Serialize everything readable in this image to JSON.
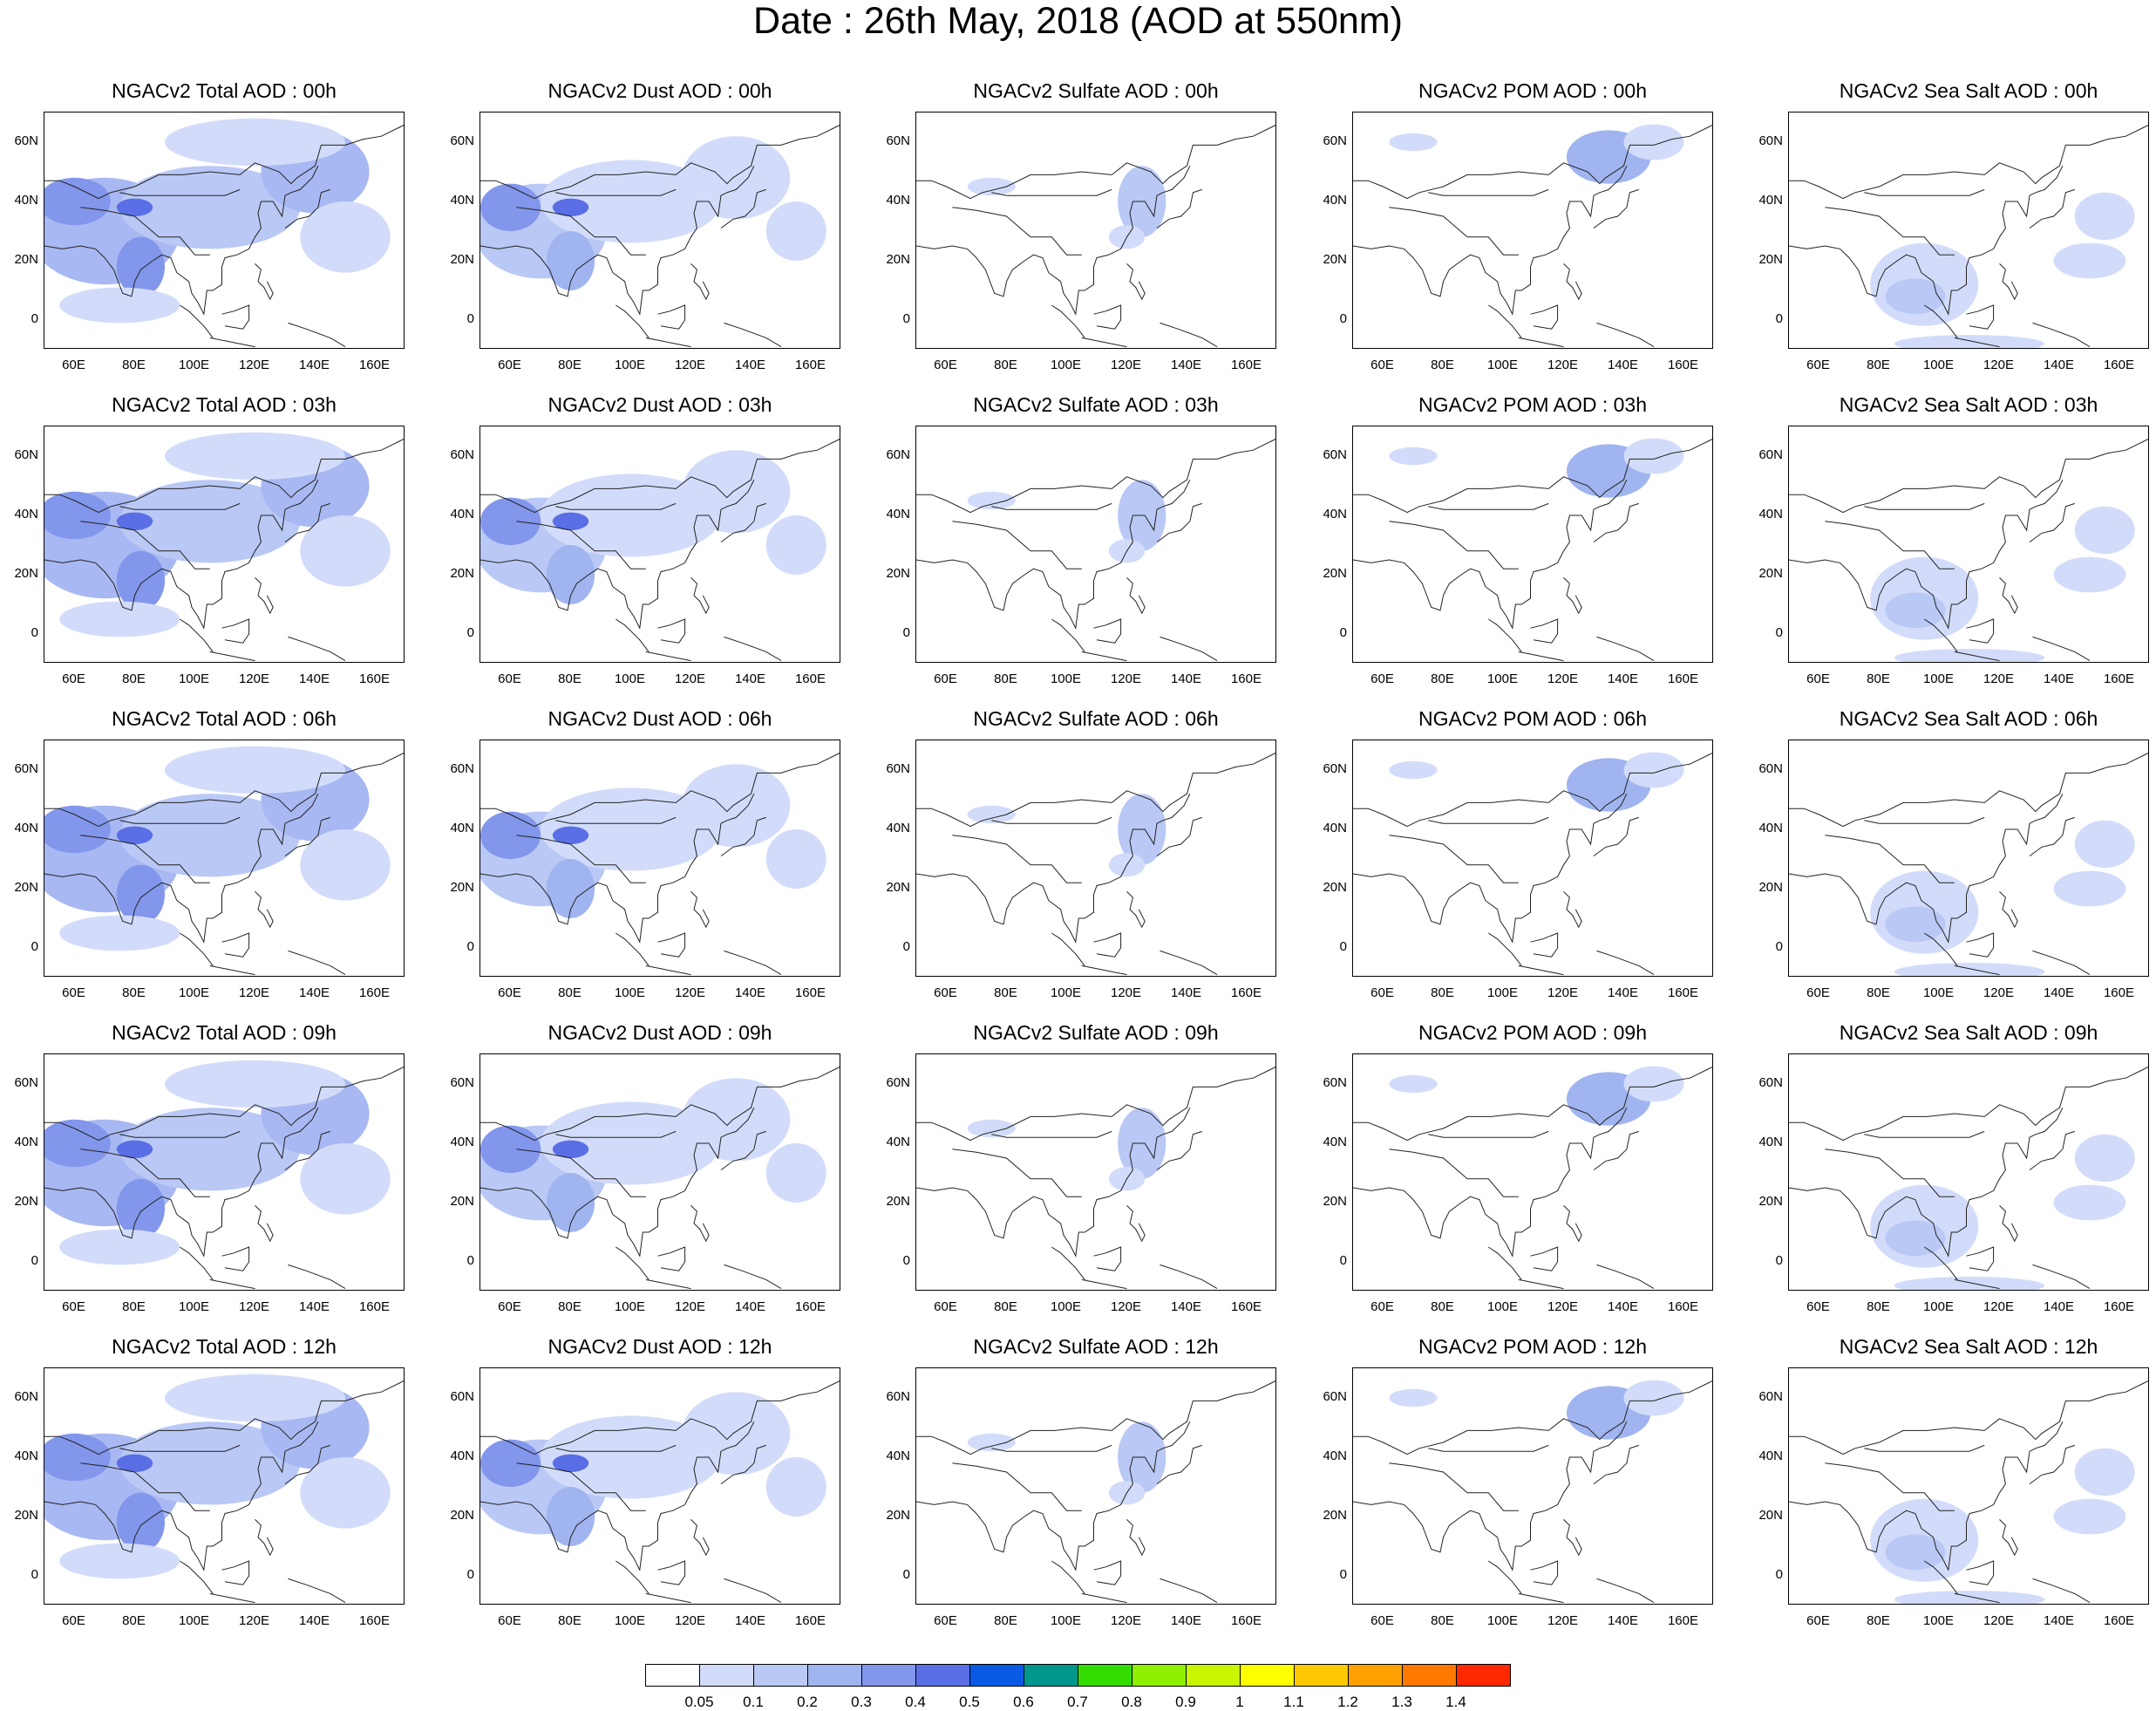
{
  "title": "Date : 26th May, 2018 (AOD at 550nm)",
  "lat_ticks": [
    "60N",
    "40N",
    "20N",
    "0"
  ],
  "lon_ticks": [
    "60E",
    "80E",
    "100E",
    "120E",
    "140E",
    "160E"
  ],
  "species": [
    {
      "key": "total",
      "fill": 0.55
    },
    {
      "key": "dust",
      "fill": 0.5
    },
    {
      "key": "sulfate",
      "fill": 0.06
    },
    {
      "key": "pom",
      "fill": 0.1
    },
    {
      "key": "seasalt",
      "fill": 0.18
    }
  ],
  "panels": [
    [
      "NGACv2 Total AOD : 00h",
      "NGACv2 Dust AOD : 00h",
      "NGACv2 Sulfate AOD : 00h",
      "NGACv2 POM AOD : 00h",
      "NGACv2 Sea Salt AOD : 00h"
    ],
    [
      "NGACv2 Total AOD : 03h",
      "NGACv2 Dust AOD : 03h",
      "NGACv2 Sulfate AOD : 03h",
      "NGACv2 POM AOD : 03h",
      "NGACv2 Sea Salt AOD : 03h"
    ],
    [
      "NGACv2 Total AOD : 06h",
      "NGACv2 Dust AOD : 06h",
      "NGACv2 Sulfate AOD : 06h",
      "NGACv2 POM AOD : 06h",
      "NGACv2 Sea Salt AOD : 06h"
    ],
    [
      "NGACv2 Total AOD : 09h",
      "NGACv2 Dust AOD : 09h",
      "NGACv2 Sulfate AOD : 09h",
      "NGACv2 POM AOD : 09h",
      "NGACv2 Sea Salt  AOD : 09h"
    ],
    [
      "NGACv2 Total AOD  : 12h",
      "NGACv2 Dust AOD : 12h",
      "NGACv2 Sulfate AOD : 12h",
      "NGACv2 POM  AOD : 12h",
      "NGACv2 Sea Salt  AOD : 12h"
    ]
  ],
  "colorbar": {
    "labels": [
      "0.05",
      "0.1",
      "0.2",
      "0.3",
      "0.4",
      "0.5",
      "0.6",
      "0.7",
      "0.8",
      "0.9",
      "1",
      "1.1",
      "1.2",
      "1.3",
      "1.4"
    ],
    "colors": [
      "#ffffff",
      "#d2dcfa",
      "#b9c8f5",
      "#a0b4f0",
      "#8296ec",
      "#5a6ee6",
      "#0a5ae6",
      "#00968c",
      "#32dc00",
      "#8cf000",
      "#c8f500",
      "#ffff00",
      "#ffc800",
      "#ffa000",
      "#ff7800",
      "#ff2800"
    ]
  }
}
